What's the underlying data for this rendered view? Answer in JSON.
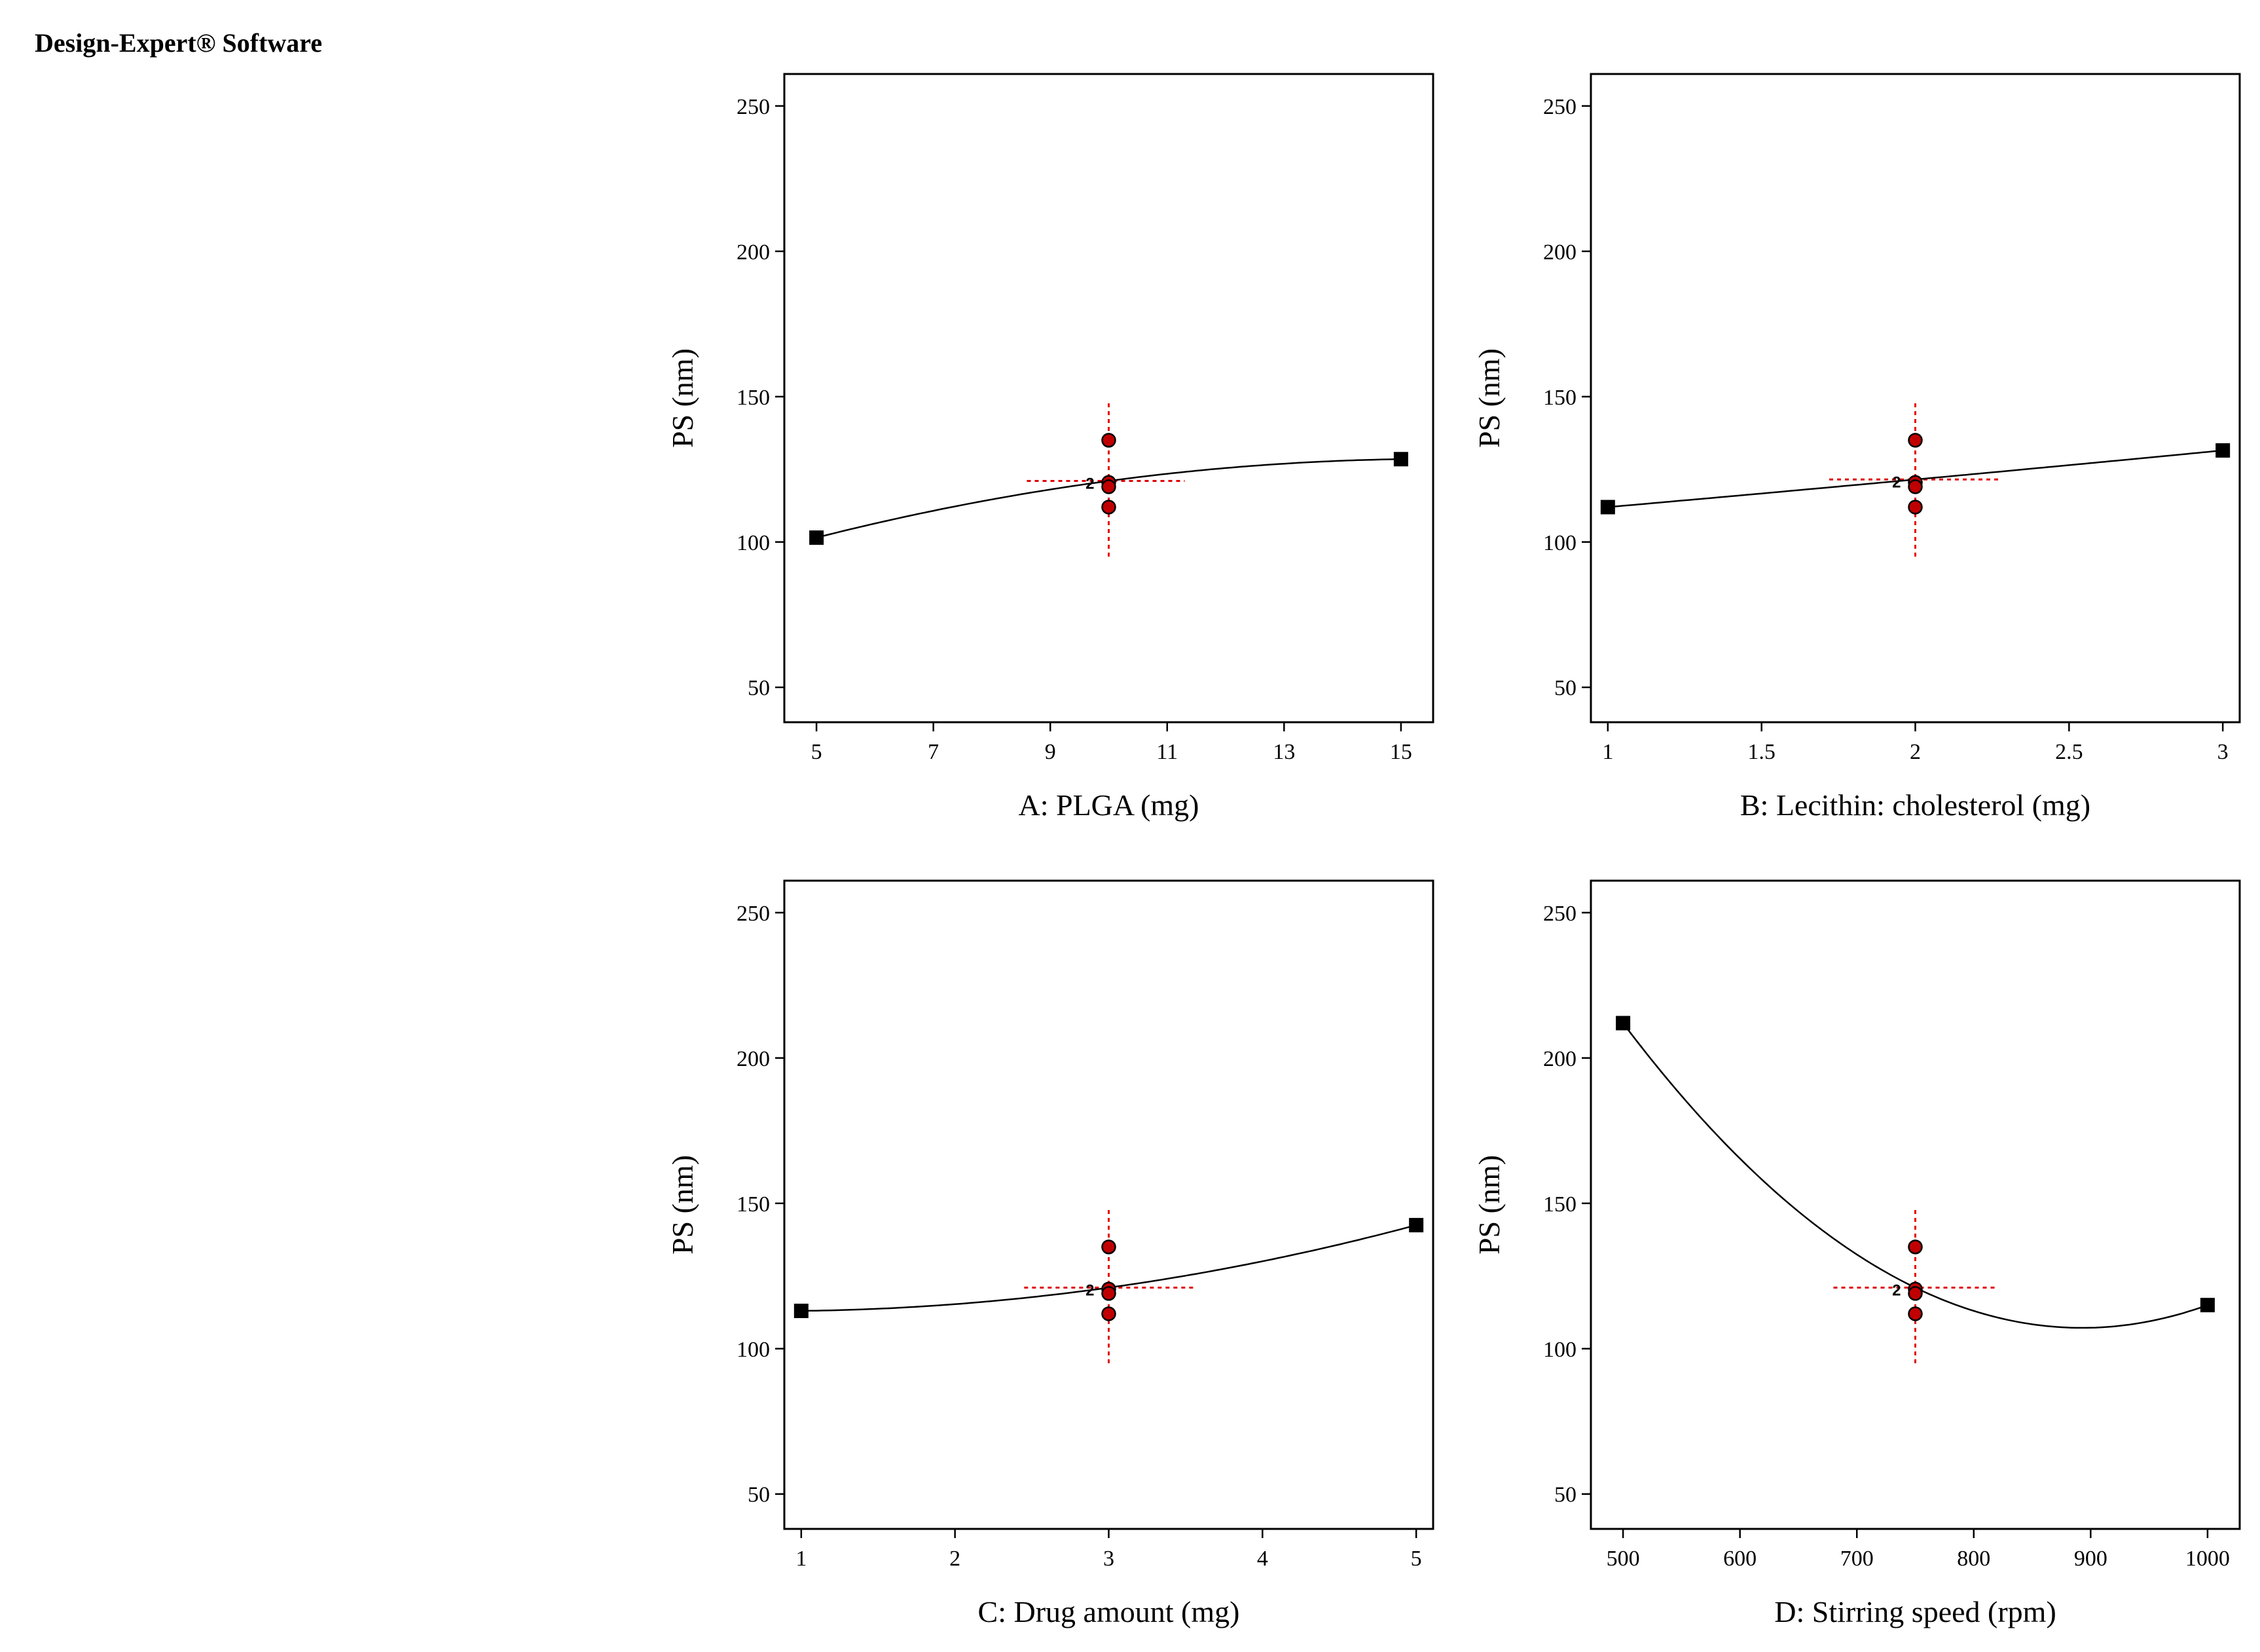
{
  "app": {
    "title": "Design-Expert® Software"
  },
  "style": {
    "marker_color": "#000000",
    "point_fill": "#c00000",
    "guide_color": "#e00000",
    "curve_color": "#000000"
  },
  "chart_data": [
    {
      "type": "line",
      "title": "",
      "xlabel": "A: PLGA (mg)",
      "ylabel": "PS (nm)",
      "xlim": [
        4.45,
        15.55
      ],
      "ylim": [
        38,
        261
      ],
      "x_ticks": [
        5,
        7,
        9,
        11,
        13,
        15
      ],
      "y_ticks": [
        50,
        100,
        150,
        200,
        250
      ],
      "curve": {
        "x": [
          5,
          10,
          15
        ],
        "y": [
          101.5,
          121,
          128.5
        ]
      },
      "end_points": [
        {
          "x": 5,
          "y": 101.5
        },
        {
          "x": 15,
          "y": 128.5
        }
      ],
      "design_points": [
        {
          "x": 10,
          "y": 135
        },
        {
          "x": 10,
          "y": 120.5
        },
        {
          "x": 10,
          "y": 119
        },
        {
          "x": 10,
          "y": 112
        }
      ],
      "design_label": "2",
      "crosshair": {
        "x": 10,
        "y": 121,
        "x_range": [
          8.6,
          11.3
        ],
        "y_range": [
          95,
          149
        ]
      }
    },
    {
      "type": "line",
      "title": "",
      "xlabel": "B: Lecithin: cholesterol  (mg)",
      "ylabel": "PS (nm)",
      "xlim": [
        0.945,
        3.055
      ],
      "ylim": [
        38,
        261
      ],
      "x_ticks": [
        1,
        1.5,
        2,
        2.5,
        3
      ],
      "y_ticks": [
        50,
        100,
        150,
        200,
        250
      ],
      "curve": {
        "x": [
          1,
          2,
          3
        ],
        "y": [
          112,
          121.5,
          131.5
        ]
      },
      "end_points": [
        {
          "x": 1,
          "y": 112
        },
        {
          "x": 3,
          "y": 131.5
        }
      ],
      "design_points": [
        {
          "x": 2,
          "y": 135
        },
        {
          "x": 2,
          "y": 120.5
        },
        {
          "x": 2,
          "y": 119
        },
        {
          "x": 2,
          "y": 112
        }
      ],
      "design_label": "2",
      "crosshair": {
        "x": 2,
        "y": 121.5,
        "x_range": [
          1.72,
          2.27
        ],
        "y_range": [
          95,
          149
        ]
      }
    },
    {
      "type": "line",
      "title": "",
      "xlabel": "C: Drug amount (mg)",
      "ylabel": "PS (nm)",
      "xlim": [
        0.89,
        5.11
      ],
      "ylim": [
        38,
        261
      ],
      "x_ticks": [
        1,
        2,
        3,
        4,
        5
      ],
      "y_ticks": [
        50,
        100,
        150,
        200,
        250
      ],
      "curve": {
        "x": [
          1,
          3,
          5
        ],
        "y": [
          113,
          121,
          142.5
        ]
      },
      "end_points": [
        {
          "x": 1,
          "y": 113
        },
        {
          "x": 5,
          "y": 142.5
        }
      ],
      "design_points": [
        {
          "x": 3,
          "y": 135
        },
        {
          "x": 3,
          "y": 120.5
        },
        {
          "x": 3,
          "y": 119
        },
        {
          "x": 3,
          "y": 112
        }
      ],
      "design_label": "2",
      "crosshair": {
        "x": 3,
        "y": 121,
        "x_range": [
          2.45,
          3.55
        ],
        "y_range": [
          95,
          149
        ]
      }
    },
    {
      "type": "line",
      "title": "",
      "xlabel": "D: Stirring speed (rpm)",
      "ylabel": "PS (nm)",
      "xlim": [
        472.5,
        1027.5
      ],
      "ylim": [
        38,
        261
      ],
      "x_ticks": [
        500,
        600,
        700,
        800,
        900,
        1000
      ],
      "y_ticks": [
        50,
        100,
        150,
        200,
        250
      ],
      "curve": {
        "x": [
          500,
          750,
          1000
        ],
        "y": [
          212,
          121,
          115
        ]
      },
      "end_points": [
        {
          "x": 500,
          "y": 212
        },
        {
          "x": 1000,
          "y": 115
        }
      ],
      "design_points": [
        {
          "x": 750,
          "y": 135
        },
        {
          "x": 750,
          "y": 120.5
        },
        {
          "x": 750,
          "y": 119
        },
        {
          "x": 750,
          "y": 112
        }
      ],
      "design_label": "2",
      "crosshair": {
        "x": 750,
        "y": 121,
        "x_range": [
          680,
          818
        ],
        "y_range": [
          95,
          149
        ]
      }
    }
  ]
}
